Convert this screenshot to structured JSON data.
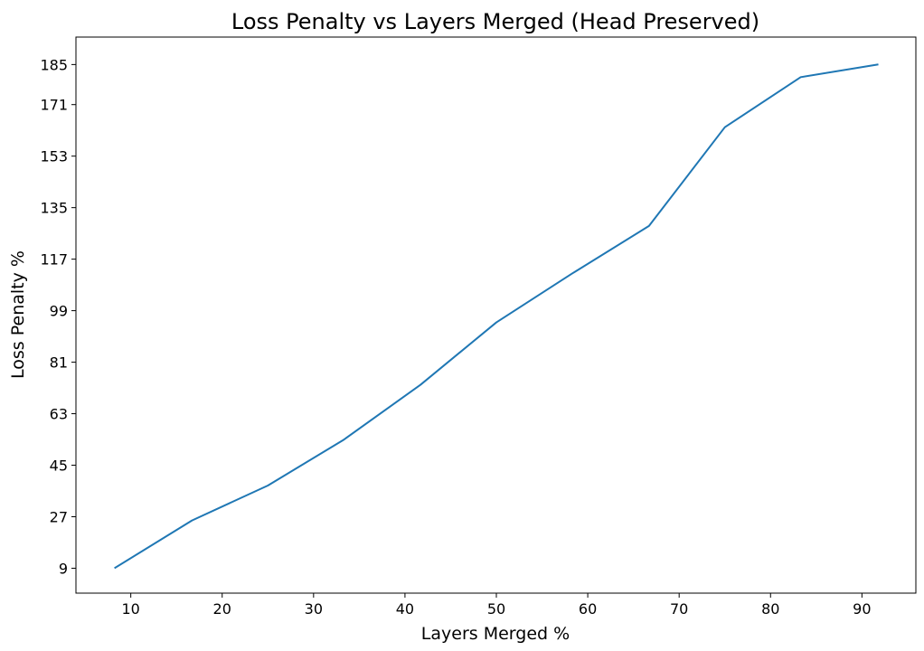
{
  "chart_data": {
    "type": "line",
    "title": "Loss Penalty vs Layers Merged (Head Preserved)",
    "xlabel": "Layers Merged %",
    "ylabel": "Loss Penalty %",
    "xlim": [
      4.0,
      95.9
    ],
    "ylim": [
      0.3,
      194.6
    ],
    "xticks": [
      10,
      20,
      30,
      40,
      50,
      60,
      70,
      80,
      90
    ],
    "xtick_labels": [
      "10",
      "20",
      "30",
      "40",
      "50",
      "60",
      "70",
      "80",
      "90"
    ],
    "yticks": [
      9,
      27,
      45,
      63,
      81,
      99,
      117,
      135,
      153,
      171,
      185
    ],
    "ytick_labels": [
      "9",
      "27",
      "45",
      "63",
      "81",
      "99",
      "117",
      "135",
      "153",
      "171",
      "185"
    ],
    "grid": false,
    "series": [
      {
        "color": "#1f77b4",
        "x": [
          8.3,
          16.7,
          25.0,
          33.3,
          41.7,
          50.0,
          58.3,
          66.7,
          75.0,
          83.3,
          91.7
        ],
        "y": [
          9.2,
          25.7,
          37.9,
          53.9,
          73.1,
          94.9,
          112.0,
          128.6,
          163.1,
          180.6,
          185.0
        ]
      }
    ]
  }
}
